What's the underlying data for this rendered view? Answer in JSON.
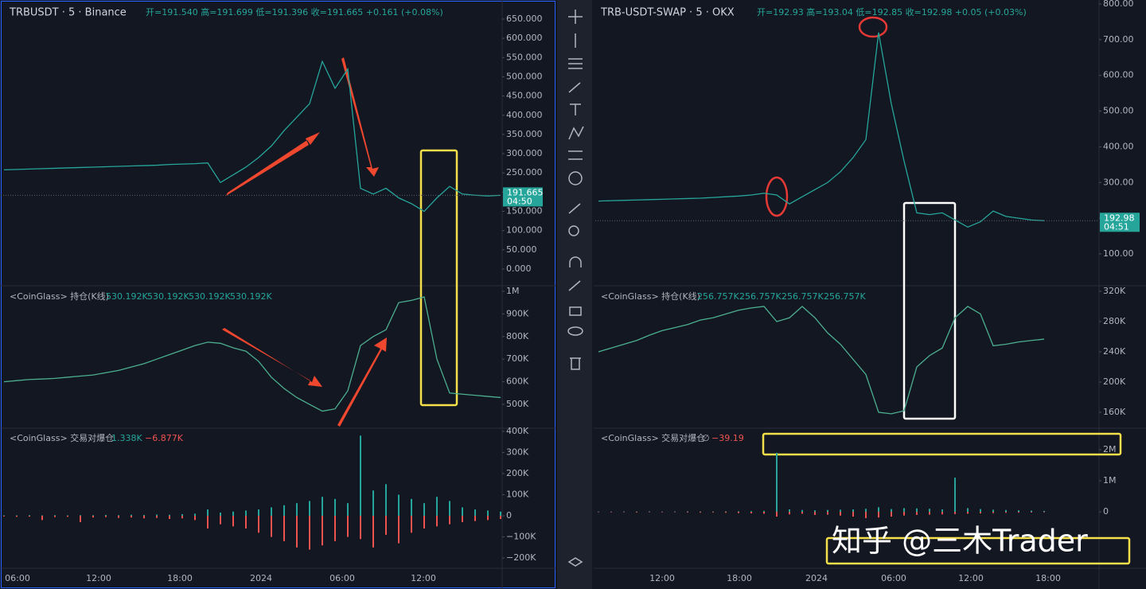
{
  "left": {
    "symbol": "TRBUSDT · 5 · Binance",
    "ohlc": "开=191.540 高=191.699 低=191.396 收=191.665 +0.161 (+0.08%)",
    "last_price": "191.665",
    "countdown": "04:50",
    "price": {
      "ylim": [
        -41.4,
        689.3
      ],
      "yticks": [
        {
          "value": 650,
          "label": "650.000"
        },
        {
          "value": 600,
          "label": "600.000"
        },
        {
          "value": 550,
          "label": "550.000"
        },
        {
          "value": 500,
          "label": "500.000"
        },
        {
          "value": 450,
          "label": "450.000"
        },
        {
          "value": 400,
          "label": "400.000"
        },
        {
          "value": 350,
          "label": "350.000"
        },
        {
          "value": 300,
          "label": "300.000"
        },
        {
          "value": 250,
          "label": "250.000"
        },
        {
          "value": 200,
          "label": "200.000"
        },
        {
          "value": 150,
          "label": "150.000"
        },
        {
          "value": 100,
          "label": "100.000"
        },
        {
          "value": 50,
          "label": "50.000"
        },
        {
          "value": 0,
          "label": "0.000"
        }
      ],
      "values": [
        258,
        259,
        260,
        261,
        262,
        263,
        264,
        265,
        266,
        267,
        268,
        269,
        270,
        272,
        273,
        274,
        276,
        225,
        245,
        265,
        290,
        320,
        360,
        395,
        430,
        540,
        470,
        520,
        210,
        195,
        210,
        185,
        170,
        150,
        185,
        215,
        195,
        192,
        190,
        191.665
      ]
    },
    "oi": {
      "title": "<CoinGlass> 持仓(K线)",
      "readouts": [
        "530.192K",
        "530.192K",
        "530.192K",
        "530.192K"
      ],
      "ylim": [
        398000,
        1021000
      ],
      "yticks": [
        {
          "value": 1000000,
          "label": "1M"
        },
        {
          "value": 900000,
          "label": "900K"
        },
        {
          "value": 800000,
          "label": "800K"
        },
        {
          "value": 700000,
          "label": "700K"
        },
        {
          "value": 600000,
          "label": "600K"
        },
        {
          "value": 500000,
          "label": "500K"
        }
      ],
      "values": [
        600000,
        605000,
        610000,
        612000,
        615000,
        620000,
        625000,
        630000,
        640000,
        650000,
        665000,
        680000,
        700000,
        720000,
        740000,
        760000,
        775000,
        770000,
        750000,
        735000,
        690000,
        620000,
        570000,
        530000,
        500000,
        470000,
        480000,
        560000,
        760000,
        800000,
        830000,
        950000,
        960000,
        975000,
        700000,
        550000,
        545000,
        540000,
        535000,
        530192
      ]
    },
    "liq": {
      "title": "<CoinGlass> 交易对爆仓",
      "readouts": [
        "1.338K",
        "−6.877K"
      ],
      "ylim": [
        -245000,
        407500
      ],
      "yticks": [
        {
          "value": 400000,
          "label": "400K"
        },
        {
          "value": 300000,
          "label": "300K"
        },
        {
          "value": 200000,
          "label": "200K"
        },
        {
          "value": 100000,
          "label": "100K"
        },
        0,
        {
          "value": -100000,
          "label": "−100K"
        },
        {
          "value": -200000,
          "label": "−200K"
        }
      ],
      "long": [
        2000,
        2000,
        3000,
        2000,
        3000,
        2000,
        3000,
        3000,
        4000,
        3000,
        5000,
        4000,
        6000,
        5000,
        8000,
        10000,
        30000,
        15000,
        20000,
        25000,
        30000,
        40000,
        50000,
        60000,
        70000,
        90000,
        80000,
        60000,
        380000,
        120000,
        150000,
        100000,
        80000,
        60000,
        90000,
        70000,
        40000,
        30000,
        25000,
        20000
      ],
      "short": [
        -3000,
        -5000,
        -4000,
        -20000,
        -6000,
        -5000,
        -30000,
        -8000,
        -6000,
        -10000,
        -8000,
        -12000,
        -10000,
        -15000,
        -12000,
        -20000,
        -60000,
        -40000,
        -50000,
        -60000,
        -80000,
        -100000,
        -120000,
        -150000,
        -160000,
        -140000,
        -120000,
        -100000,
        -110000,
        -150000,
        -90000,
        -130000,
        -80000,
        -60000,
        -50000,
        -40000,
        -30000,
        -25000,
        -20000,
        -15000
      ]
    },
    "time_labels": [
      "06:00",
      "12:00",
      "18:00",
      "2024",
      "06:00",
      "12:00"
    ]
  },
  "right": {
    "symbol": "TRB-USDT-SWAP · 5 · OKX",
    "ohlc": "开=192.93 高=193.04 低=192.85 收=192.98 +0.05 (+0.03%)",
    "last_price": "192.98",
    "countdown": "04:51",
    "price": {
      "ylim": [
        13,
        800
      ],
      "yticks": [
        {
          "value": 800,
          "label": "800.00"
        },
        {
          "value": 700,
          "label": "700.00"
        },
        {
          "value": 600,
          "label": "600.00"
        },
        {
          "value": 500,
          "label": "500.00"
        },
        {
          "value": 400,
          "label": "400.00"
        },
        {
          "value": 300,
          "label": "300.00"
        },
        {
          "value": 200,
          "label": "200.00"
        },
        {
          "value": 100,
          "label": "100.00"
        }
      ],
      "values": [
        248,
        249,
        250,
        251,
        252,
        253,
        254,
        255,
        256,
        258,
        260,
        262,
        265,
        270,
        265,
        240,
        260,
        280,
        300,
        330,
        370,
        420,
        720,
        520,
        360,
        215,
        210,
        215,
        195,
        175,
        190,
        220,
        205,
        200,
        195,
        192.98,
        null,
        null,
        null,
        null
      ]
    },
    "oi": {
      "title": "<CoinGlass> 持仓(K线)",
      "readouts": [
        "256.757K",
        "256.757K",
        "256.757K",
        "256.757K"
      ],
      "ylim": [
        140000,
        326300
      ],
      "yticks": [
        {
          "value": 320000,
          "label": "320K"
        },
        {
          "value": 280000,
          "label": "280K"
        },
        {
          "value": 240000,
          "label": "240K"
        },
        {
          "value": 200000,
          "label": "200K"
        },
        {
          "value": 160000,
          "label": "160K"
        }
      ],
      "values": [
        240000,
        245000,
        250000,
        255000,
        262000,
        268000,
        272000,
        276000,
        282000,
        285000,
        290000,
        295000,
        298000,
        300000,
        280000,
        285000,
        300000,
        285000,
        265000,
        250000,
        230000,
        210000,
        160000,
        158000,
        162000,
        220000,
        235000,
        245000,
        285000,
        300000,
        290000,
        248000,
        250000,
        253000,
        255000,
        256757,
        null,
        null,
        null,
        null
      ]
    },
    "liq": {
      "title": "<CoinGlass> 交易对爆仓",
      "readouts": [
        "∅",
        "−39.19"
      ],
      "ylim": [
        -1790000,
        2640000
      ],
      "yticks": [
        {
          "value": 2000000,
          "label": "2M"
        },
        {
          "value": 1000000,
          "label": "1M"
        },
        0
      ],
      "long": [
        10000,
        10000,
        12000,
        10000,
        15000,
        10000,
        12000,
        15000,
        10000,
        12000,
        15000,
        20000,
        25000,
        30000,
        1900000,
        80000,
        60000,
        50000,
        60000,
        70000,
        80000,
        100000,
        150000,
        90000,
        120000,
        110000,
        100000,
        80000,
        1100000,
        120000,
        90000,
        70000,
        60000,
        50000,
        40000,
        30000,
        null,
        null,
        null,
        null
      ],
      "short": [
        -10000,
        -15000,
        -10000,
        -20000,
        -12000,
        -15000,
        -10000,
        -20000,
        -25000,
        -20000,
        -30000,
        -40000,
        -50000,
        -60000,
        -150000,
        -80000,
        -60000,
        -100000,
        -90000,
        -120000,
        -150000,
        -200000,
        -180000,
        -150000,
        -120000,
        -100000,
        -90000,
        -80000,
        -70000,
        -60000,
        -50000,
        -40000,
        -30000,
        -25000,
        -20000,
        -15000,
        null,
        null,
        null,
        null
      ]
    },
    "time_labels": [
      "12:00",
      "18:00",
      "2024",
      "06:00",
      "12:00",
      "18:00"
    ]
  },
  "watermark": "知乎 @三木Trader"
}
